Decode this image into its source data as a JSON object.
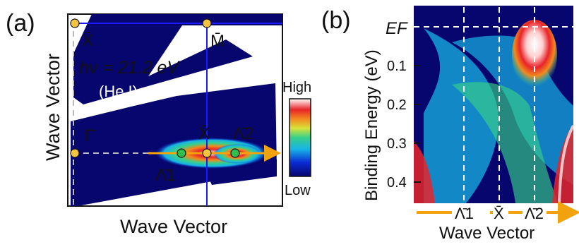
{
  "panel_a": {
    "label": "(a)",
    "x_axis_label": "Wave Vector",
    "y_axis_label": "Wave Vector",
    "photon_energy": "hν = 21.2 eV",
    "source": "(He I)",
    "points": {
      "x_bar_top": "X̄",
      "m_bar": "M̄",
      "gamma_bar": "Γ̄",
      "x_bar": "X̄",
      "lambda2": "Λ̄2",
      "lambda1": "Λ̄1"
    },
    "colorbar": {
      "high": "High",
      "low": "Low"
    }
  },
  "panel_b": {
    "label": "(b)",
    "y_axis_label": "Binding Energy (eV)",
    "ef_label": "EF",
    "y_ticks": [
      "0.1",
      "0.2",
      "0.3",
      "0.4"
    ],
    "x_points": [
      "Λ̄1",
      "X̄",
      "Λ̄2"
    ],
    "x_axis_label": "Wave Vector"
  },
  "colors": {
    "background": "#06066e",
    "line": "#1a1aff",
    "point_yellow": "#f5c542",
    "point_green": "#2fbf4a",
    "arrow": "#f2a20d"
  }
}
